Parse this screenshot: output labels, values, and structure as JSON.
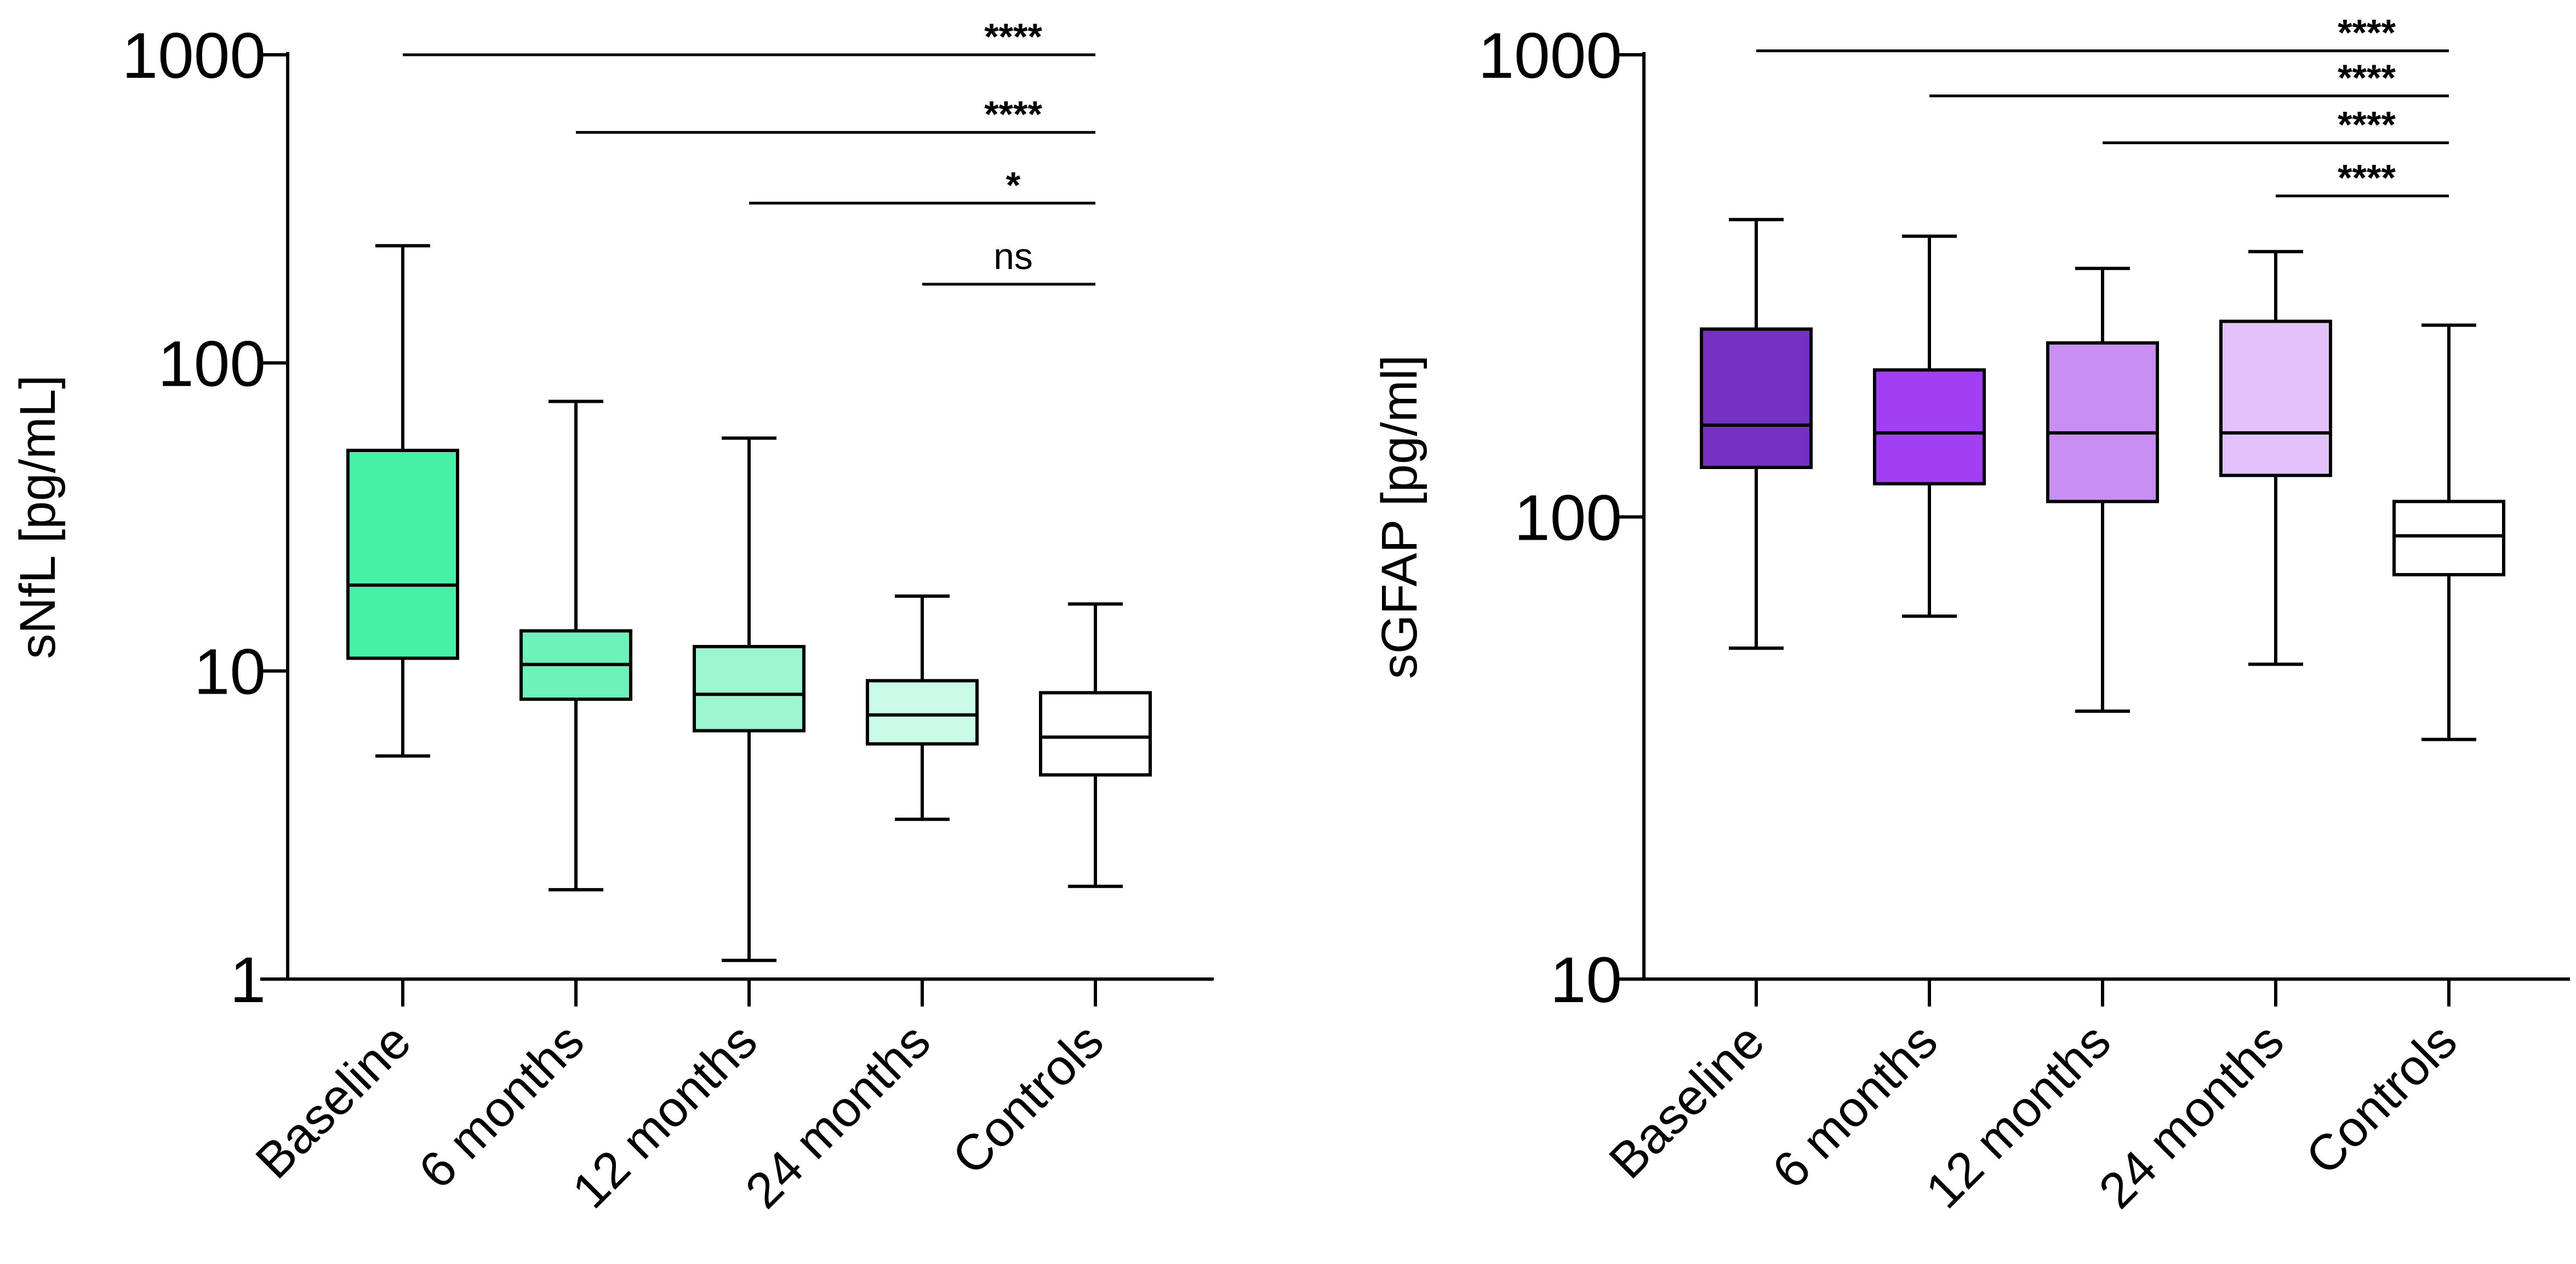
{
  "chart_data": [
    {
      "type": "box",
      "ylabel": "sNfL [pg/mL]",
      "yscale": "log",
      "ylim": [
        1,
        1000
      ],
      "yticks": [
        {
          "value": 1,
          "label": "1"
        },
        {
          "value": 10,
          "label": "10"
        },
        {
          "value": 100,
          "label": "100"
        },
        {
          "value": 1000,
          "label": "1000"
        }
      ],
      "categories": [
        "Baseline",
        "6 months",
        "12 months",
        "24 months",
        "Controls"
      ],
      "boxes": [
        {
          "min": 5.3,
          "q1": 11,
          "median": 19,
          "q3": 52,
          "max": 240,
          "color": "#46f0a4"
        },
        {
          "min": 1.95,
          "q1": 8.1,
          "median": 10.5,
          "q3": 13.5,
          "max": 75,
          "color": "#6ff2ba"
        },
        {
          "min": 1.15,
          "q1": 6.4,
          "median": 8.4,
          "q3": 12,
          "max": 57,
          "color": "#9cf6cf"
        },
        {
          "min": 3.3,
          "q1": 5.8,
          "median": 7.2,
          "q3": 9.3,
          "max": 17.5,
          "color": "#c9fbe6"
        },
        {
          "min": 2.0,
          "q1": 4.6,
          "median": 6.1,
          "q3": 8.5,
          "max": 16.5,
          "color": "#ffffff"
        }
      ],
      "comparisons": [
        {
          "from": "Baseline",
          "to": "Controls",
          "label": "****",
          "y": 1000
        },
        {
          "from": "6 months",
          "to": "Controls",
          "label": "****",
          "y": 560
        },
        {
          "from": "12 months",
          "to": "Controls",
          "label": "*",
          "y": 330
        },
        {
          "from": "24 months",
          "to": "Controls",
          "label": "ns",
          "y": 180
        }
      ]
    },
    {
      "type": "box",
      "ylabel": "sGFAP [pg/ml]",
      "yscale": "log",
      "ylim": [
        10,
        1000
      ],
      "yticks": [
        {
          "value": 10,
          "label": "10"
        },
        {
          "value": 100,
          "label": "100"
        },
        {
          "value": 1000,
          "label": "1000"
        }
      ],
      "categories": [
        "Baseline",
        "6 months",
        "12 months",
        "24 months",
        "Controls"
      ],
      "boxes": [
        {
          "min": 52,
          "q1": 128,
          "median": 158,
          "q3": 255,
          "max": 440,
          "color": "#7431c2"
        },
        {
          "min": 61,
          "q1": 118,
          "median": 152,
          "q3": 208,
          "max": 405,
          "color": "#a23ff5"
        },
        {
          "min": 38,
          "q1": 108,
          "median": 152,
          "q3": 238,
          "max": 345,
          "color": "#c98ef4"
        },
        {
          "min": 48,
          "q1": 123,
          "median": 152,
          "q3": 265,
          "max": 375,
          "color": "#e3c2fa"
        },
        {
          "min": 33,
          "q1": 75,
          "median": 91,
          "q3": 108,
          "max": 260,
          "color": "#ffffff"
        }
      ],
      "comparisons": [
        {
          "from": "Baseline",
          "to": "Controls",
          "label": "****",
          "y": 1020
        },
        {
          "from": "6 months",
          "to": "Controls",
          "label": "****",
          "y": 815
        },
        {
          "from": "12 months",
          "to": "Controls",
          "label": "****",
          "y": 645
        },
        {
          "from": "24 months",
          "to": "Controls",
          "label": "****",
          "y": 495
        }
      ]
    }
  ]
}
